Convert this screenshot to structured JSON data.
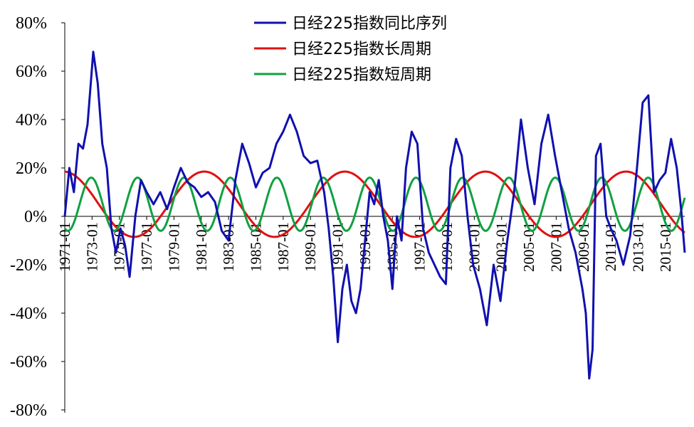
{
  "chart_data": {
    "type": "line",
    "title": "",
    "xlabel": "",
    "ylabel": "",
    "ylim": [
      -0.8,
      0.8
    ],
    "xlim": [
      "1971-01",
      "2016-06"
    ],
    "grid": false,
    "legend_position": "top-center",
    "y_ticks": [
      "80%",
      "60%",
      "40%",
      "20%",
      "0%",
      "-20%",
      "-40%",
      "-60%",
      "-80%"
    ],
    "y_tick_values": [
      0.8,
      0.6,
      0.4,
      0.2,
      0.0,
      -0.2,
      -0.4,
      -0.6,
      -0.8
    ],
    "x_ticks": [
      "1971-01",
      "1973-01",
      "1975-01",
      "1977-01",
      "1979-01",
      "1981-01",
      "1983-01",
      "1985-01",
      "1987-01",
      "1989-01",
      "1991-01",
      "1993-01",
      "1995-01",
      "1997-01",
      "1999-01",
      "2001-01",
      "2003-01",
      "2005-01",
      "2007-01",
      "2009-01",
      "2011-01",
      "2013-01",
      "2015-01"
    ],
    "series": [
      {
        "name": "日经225指数同比序列",
        "color": "#1010b0",
        "x": [
          "1971-01",
          "1971-05",
          "1971-09",
          "1972-01",
          "1972-05",
          "1972-09",
          "1972-12",
          "1973-02",
          "1973-06",
          "1973-10",
          "1974-02",
          "1974-06",
          "1974-10",
          "1975-02",
          "1975-06",
          "1975-10",
          "1976-03",
          "1976-08",
          "1977-01",
          "1977-07",
          "1978-01",
          "1978-07",
          "1979-01",
          "1979-07",
          "1980-01",
          "1980-07",
          "1981-01",
          "1981-07",
          "1982-01",
          "1982-07",
          "1983-01",
          "1983-07",
          "1984-01",
          "1984-07",
          "1985-01",
          "1985-07",
          "1986-01",
          "1986-07",
          "1987-01",
          "1987-07",
          "1988-01",
          "1988-07",
          "1989-01",
          "1989-07",
          "1990-01",
          "1990-05",
          "1990-09",
          "1991-01",
          "1991-05",
          "1991-09",
          "1992-01",
          "1992-05",
          "1992-09",
          "1993-01",
          "1993-05",
          "1993-09",
          "1994-01",
          "1994-05",
          "1994-09",
          "1995-01",
          "1995-05",
          "1995-09",
          "1996-01",
          "1996-06",
          "1996-11",
          "1997-04",
          "1997-09",
          "1998-02",
          "1998-07",
          "1998-12",
          "1999-04",
          "1999-09",
          "2000-02",
          "2000-07",
          "2000-12",
          "2001-06",
          "2001-12",
          "2002-06",
          "2002-12",
          "2003-06",
          "2003-12",
          "2004-06",
          "2004-12",
          "2005-06",
          "2005-12",
          "2006-06",
          "2006-12",
          "2007-06",
          "2007-12",
          "2008-06",
          "2008-12",
          "2009-03",
          "2009-06",
          "2009-09",
          "2009-12",
          "2010-04",
          "2010-09",
          "2011-01",
          "2011-06",
          "2011-12",
          "2012-06",
          "2012-12",
          "2013-05",
          "2013-10",
          "2014-03",
          "2014-08",
          "2015-01",
          "2015-06",
          "2015-11",
          "2016-03",
          "2016-06"
        ],
        "values": [
          0.0,
          0.2,
          0.1,
          0.3,
          0.28,
          0.38,
          0.56,
          0.68,
          0.55,
          0.3,
          0.2,
          -0.05,
          -0.15,
          -0.05,
          -0.12,
          -0.25,
          0.0,
          0.15,
          0.1,
          0.05,
          0.1,
          0.03,
          0.12,
          0.2,
          0.14,
          0.12,
          0.08,
          0.1,
          0.06,
          -0.06,
          -0.1,
          0.15,
          0.3,
          0.22,
          0.12,
          0.18,
          0.2,
          0.3,
          0.35,
          0.42,
          0.35,
          0.25,
          0.22,
          0.23,
          0.1,
          -0.05,
          -0.25,
          -0.52,
          -0.3,
          -0.2,
          -0.35,
          -0.4,
          -0.3,
          -0.1,
          0.1,
          0.05,
          0.15,
          0.0,
          -0.1,
          -0.3,
          0.0,
          -0.1,
          0.2,
          0.35,
          0.3,
          -0.05,
          -0.15,
          -0.2,
          -0.25,
          -0.28,
          0.2,
          0.32,
          0.25,
          0.0,
          -0.2,
          -0.3,
          -0.45,
          -0.2,
          -0.35,
          -0.1,
          0.1,
          0.4,
          0.2,
          0.05,
          0.3,
          0.42,
          0.25,
          0.1,
          -0.05,
          -0.15,
          -0.3,
          -0.4,
          -0.67,
          -0.55,
          0.25,
          0.3,
          0.0,
          -0.05,
          -0.1,
          -0.2,
          -0.08,
          0.2,
          0.47,
          0.5,
          0.1,
          0.15,
          0.18,
          0.32,
          0.2,
          0.02,
          -0.15
        ]
      },
      {
        "name": "日经225指数长周期",
        "color": "#e01010",
        "wave": {
          "center": 0.05,
          "amplitude": 0.135,
          "period_years": 10.3,
          "peak": "1970-12"
        }
      },
      {
        "name": "日经225指数短周期",
        "color": "#10a040",
        "wave": {
          "center": 0.05,
          "amplitude": 0.11,
          "period_years": 3.4,
          "peak": "1976-05"
        }
      }
    ]
  }
}
